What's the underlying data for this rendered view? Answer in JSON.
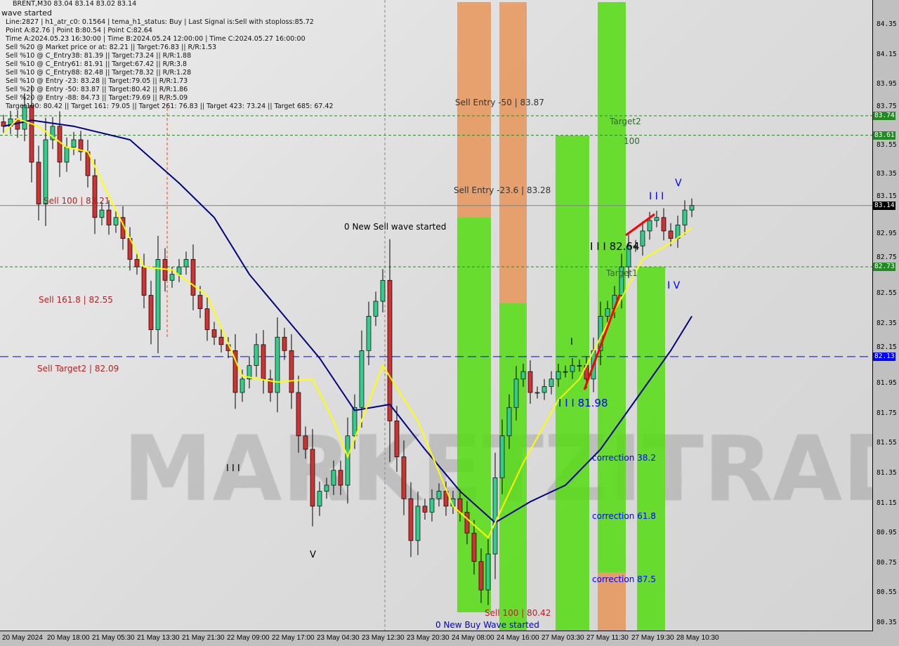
{
  "header": {
    "symbol_line": "BRENT,M30  83.04 83.14 83.02 83.14",
    "overlay_line": "wave started",
    "info_lines": [
      "Line:2827 | h1_atr_c0: 0.1564 | tema_h1_status: Buy | Last Signal is:Sell with stoploss:85.72",
      "Point A:82.76 | Point B:80.54 | Point C:82.64",
      "Time A:2024.05.23 16:30:00 | Time B:2024.05.24 12:00:00 | Time C:2024.05.27 16:00:00",
      "Sell %20 @ Market price or at: 82.21 || Target:76.83 || R/R:1.53",
      "Sell %10 @ C_Entry38: 81.39 || Target:73.24 || R/R:1.88",
      "Sell %10 @ C_Entry61: 81.91 || Target:67.42 || R/R:3.8",
      "Sell %10 @ C_Entry88: 82.48 || Target:78.32 || R/R:1.28",
      "Sell %10 @ Entry -23: 83.28 || Target:79.05 || R/R:1.73",
      "Sell %20 @ Entry -50: 83.87 || Target:80.42 || R/R:1.86",
      "Sell %20 @ Entry -88: 84.73 || Target:79.69 || R/R:5.09",
      "Target100: 80.42 || Target 161: 79.05 || Target 261: 76.83 || Target 423: 73.24 || Target 685: 67.42"
    ]
  },
  "annotations": {
    "sell_entry_50": "Sell Entry -50 | 83.87",
    "sell_entry_236": "Sell Entry -23.6 | 83.28",
    "target2": "Target2",
    "hundred": "100",
    "target1": "Target1",
    "sell_100": "Sell 100 | 83.21",
    "sell_1618": "Sell 161.8 | 82.55",
    "sell_target2": "Sell Target2 | 82.09",
    "new_sell_wave": "0 New Sell wave started",
    "new_buy_wave": "0 New Buy Wave started",
    "sell_100_low": "Sell 100 | 80.42",
    "point_c": "I I I 82.64",
    "point_b": "I I I 81.98",
    "correction_382": "correction 38.2",
    "correction_618": "correction 61.8",
    "correction_875": "correction 87.5",
    "wave_iii": "I I I",
    "wave_v": "V",
    "wave_iv": "I V",
    "wave_i": "I",
    "wave_iii_left": "I I I",
    "wave_v_left": "V"
  },
  "watermark": "MARKETZITRADE",
  "colors": {
    "up": "#33cc88",
    "down": "#cc3333",
    "ma_slow": "#000080",
    "ma_fast": "#ffff00",
    "green_band": "#55dd11",
    "orange_band": "#e8955a",
    "level_green": "#228b22",
    "level_blue": "#0000ff"
  },
  "chart_data": {
    "type": "candlestick",
    "symbol": "BRENT",
    "timeframe": "M30",
    "ylim": [
      80.3,
      84.45
    ],
    "y_ticks": [
      "84.35",
      "84.15",
      "83.95",
      "83.75",
      "83.55",
      "83.35",
      "83.15",
      "82.95",
      "82.75",
      "82.55",
      "82.35",
      "82.15",
      "81.95",
      "81.75",
      "81.55",
      "81.35",
      "81.15",
      "80.95",
      "80.75",
      "80.55",
      "80.35"
    ],
    "x_ticks": [
      "20 May 2024",
      "20 May 18:00",
      "21 May 05:30",
      "21 May 13:30",
      "21 May 21:30",
      "22 May 09:00",
      "22 May 17:00",
      "23 May 04:30",
      "23 May 12:30",
      "23 May 20:30",
      "24 May 08:00",
      "24 May 16:00",
      "27 May 03:30",
      "27 May 11:30",
      "27 May 19:30",
      "28 May 10:30"
    ],
    "closes": [
      83.67,
      83.72,
      83.65,
      83.81,
      83.43,
      83.15,
      83.58,
      83.67,
      83.43,
      83.53,
      83.58,
      83.5,
      83.34,
      83.06,
      83.11,
      83.01,
      83.06,
      82.92,
      82.78,
      82.73,
      82.54,
      82.31,
      82.78,
      82.64,
      82.68,
      82.73,
      82.78,
      82.54,
      82.45,
      82.31,
      82.26,
      82.21,
      82.17,
      81.89,
      81.98,
      82.07,
      82.21,
      81.98,
      81.89,
      82.26,
      82.17,
      81.89,
      81.6,
      81.51,
      81.13,
      81.23,
      81.27,
      81.37,
      81.27,
      81.6,
      81.79,
      82.17,
      82.4,
      82.5,
      82.64,
      81.7,
      81.46,
      81.18,
      80.9,
      81.13,
      81.09,
      81.18,
      81.23,
      81.13,
      81.18,
      81.09,
      80.95,
      80.76,
      80.57,
      80.81,
      81.32,
      81.6,
      81.79,
      81.98,
      82.03,
      81.89,
      81.89,
      81.93,
      81.98,
      82.03,
      82.03,
      82.07,
      82.07,
      81.98,
      82.17,
      82.4,
      82.45,
      82.54,
      82.73,
      82.87,
      82.87,
      82.97,
      83.04,
      83.06,
      82.97,
      82.92,
      83.01,
      83.11,
      83.14
    ],
    "ma_slow": [
      [
        0,
        83.67
      ],
      [
        4,
        83.71
      ],
      [
        10,
        83.67
      ],
      [
        18,
        83.58
      ],
      [
        25,
        83.29
      ],
      [
        30,
        83.06
      ],
      [
        35,
        82.68
      ],
      [
        40,
        82.4
      ],
      [
        45,
        82.12
      ],
      [
        50,
        81.77
      ],
      [
        55,
        81.81
      ],
      [
        60,
        81.51
      ],
      [
        65,
        81.23
      ],
      [
        70,
        81.02
      ],
      [
        75,
        81.16
      ],
      [
        80,
        81.27
      ],
      [
        85,
        81.51
      ],
      [
        90,
        81.84
      ],
      [
        95,
        82.17
      ],
      [
        98,
        82.4
      ]
    ],
    "ma_fast": [
      [
        0,
        83.62
      ],
      [
        2,
        83.72
      ],
      [
        5,
        83.67
      ],
      [
        9,
        83.53
      ],
      [
        12,
        83.5
      ],
      [
        16,
        83.11
      ],
      [
        20,
        82.73
      ],
      [
        24,
        82.71
      ],
      [
        29,
        82.54
      ],
      [
        34,
        82.0
      ],
      [
        39,
        81.96
      ],
      [
        44,
        81.98
      ],
      [
        47,
        81.7
      ],
      [
        49,
        81.46
      ],
      [
        54,
        82.07
      ],
      [
        59,
        81.7
      ],
      [
        64,
        81.13
      ],
      [
        69,
        80.92
      ],
      [
        74,
        81.42
      ],
      [
        79,
        81.84
      ],
      [
        82,
        81.98
      ],
      [
        86,
        82.35
      ],
      [
        91,
        82.78
      ],
      [
        95,
        82.89
      ],
      [
        98,
        82.99
      ]
    ],
    "levels": [
      {
        "price": 83.74,
        "label": "83.74",
        "style": "dashed",
        "color": "#228b22"
      },
      {
        "price": 83.61,
        "label": "83.61",
        "style": "dashed",
        "color": "#228b22"
      },
      {
        "price": 83.14,
        "label": "83.14",
        "style": "solid",
        "color": "#808080"
      },
      {
        "price": 82.73,
        "label": "82.73",
        "style": "dashed",
        "color": "#228b22"
      },
      {
        "price": 82.13,
        "label": "82.13",
        "style": "longdash",
        "color": "#0000ff"
      }
    ]
  }
}
